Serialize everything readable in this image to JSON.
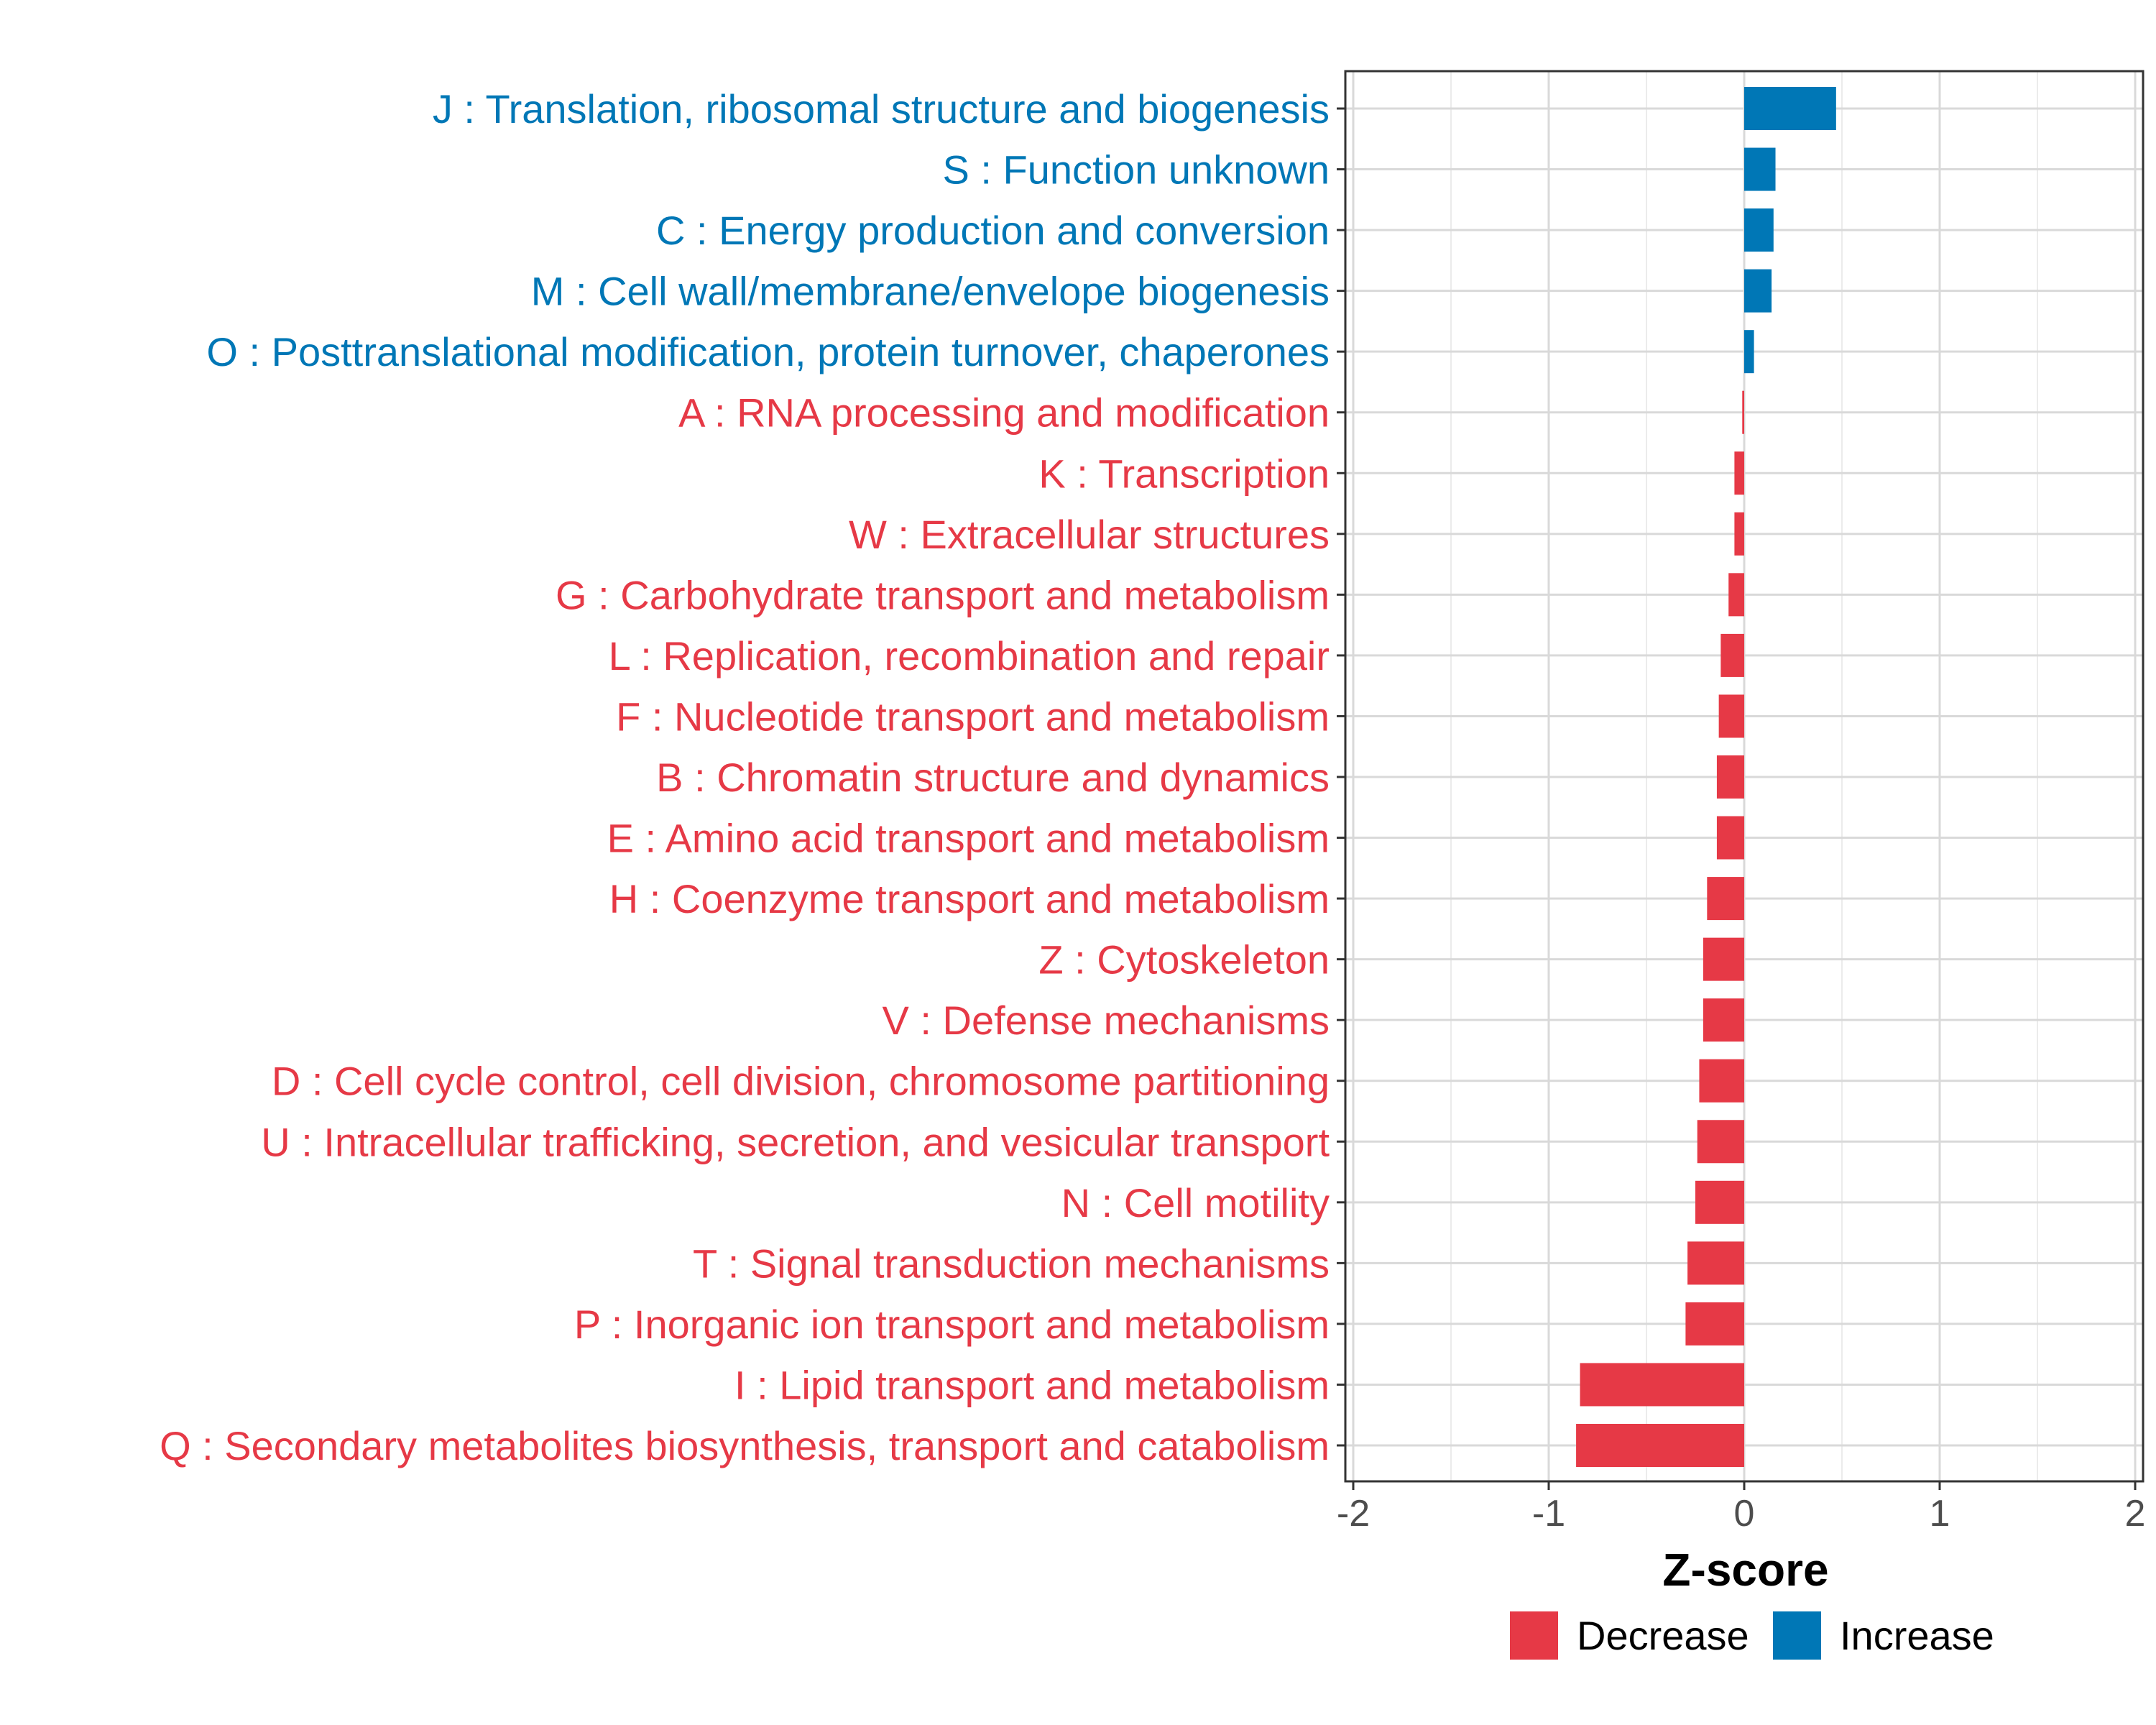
{
  "chart_data": {
    "type": "bar",
    "orientation": "horizontal",
    "title": "",
    "xlabel": "Z-score",
    "ylabel": "",
    "xlim": [
      -2,
      2
    ],
    "xticks": [
      -2,
      -1,
      0,
      1,
      2
    ],
    "xtick_labels": [
      "-2",
      "-1",
      "0",
      "1",
      "2"
    ],
    "grid": true,
    "legend_position": "bottom",
    "legend": [
      {
        "name": "Decrease",
        "color": "#E63946"
      },
      {
        "name": "Increase",
        "color": "#0077B6"
      }
    ],
    "categories": [
      "J : Translation, ribosomal structure and biogenesis",
      "S : Function unknown",
      "C : Energy production and conversion",
      "M : Cell wall/membrane/envelope biogenesis",
      "O : Posttranslational modification, protein turnover, chaperones",
      "A : RNA processing and modification",
      "K : Transcription",
      "W : Extracellular structures",
      "G : Carbohydrate transport and metabolism",
      "L : Replication, recombination and repair",
      "F : Nucleotide transport and metabolism",
      "B : Chromatin structure and dynamics",
      "E : Amino acid transport and metabolism",
      "H : Coenzyme transport and metabolism",
      "Z : Cytoskeleton",
      "V : Defense mechanisms",
      "D : Cell cycle control, cell division, chromosome partitioning",
      "U : Intracellular trafficking, secretion, and vesicular transport",
      "N : Cell motility",
      "T : Signal transduction mechanisms",
      "P : Inorganic ion transport and metabolism",
      "I : Lipid transport and metabolism",
      "Q : Secondary metabolites biosynthesis, transport and catabolism"
    ],
    "values": [
      0.47,
      0.16,
      0.15,
      0.14,
      0.05,
      -0.01,
      -0.05,
      -0.05,
      -0.08,
      -0.12,
      -0.13,
      -0.14,
      -0.14,
      -0.19,
      -0.21,
      -0.21,
      -0.23,
      -0.24,
      -0.25,
      -0.29,
      -0.3,
      -0.84,
      -0.86
    ],
    "groups": [
      "Increase",
      "Increase",
      "Increase",
      "Increase",
      "Increase",
      "Decrease",
      "Decrease",
      "Decrease",
      "Decrease",
      "Decrease",
      "Decrease",
      "Decrease",
      "Decrease",
      "Decrease",
      "Decrease",
      "Decrease",
      "Decrease",
      "Decrease",
      "Decrease",
      "Decrease",
      "Decrease",
      "Decrease",
      "Decrease"
    ]
  }
}
